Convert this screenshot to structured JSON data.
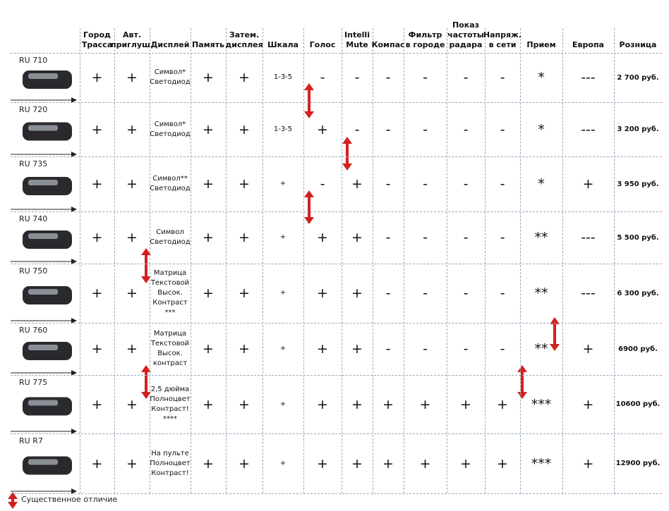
{
  "table": {
    "header": [
      [
        "Город",
        "Трасса"
      ],
      [
        "Авт.",
        "приглуш."
      ],
      [
        "Дисплей"
      ],
      [
        "Память"
      ],
      [
        "Затем.",
        "дисплея"
      ],
      [
        "Шкала"
      ],
      [
        "Голос"
      ],
      [
        "Intelli",
        "Mute"
      ],
      [
        "Компас"
      ],
      [
        "Фильтр",
        "в городе"
      ],
      [
        "Показ",
        "частоты",
        "радара"
      ],
      [
        "Напряж.",
        "в сети"
      ],
      [
        "Прием"
      ],
      [
        "Европа"
      ],
      [
        "Розница"
      ]
    ],
    "rows": [
      {
        "model": "RU 710",
        "cells": [
          "+",
          "+",
          [
            "Символ*",
            "Светодиод"
          ],
          "+",
          "+",
          "1-3-5",
          "-",
          "-",
          "-",
          "-",
          "-",
          "-",
          "*",
          "---",
          "2 700 руб."
        ]
      },
      {
        "model": "RU 720",
        "cells": [
          "+",
          "+",
          [
            "Символ*",
            "Светодиод"
          ],
          "+",
          "+",
          "1-3-5",
          "+",
          "-",
          "-",
          "-",
          "-",
          "-",
          "*",
          "---",
          "3 200 руб."
        ]
      },
      {
        "model": "RU 735",
        "cells": [
          "+",
          "+",
          [
            "Символ**",
            "Светодиод"
          ],
          "+",
          "+",
          "+",
          "-",
          "+",
          "-",
          "-",
          "-",
          "-",
          "*",
          "+",
          "3 950 руб."
        ]
      },
      {
        "model": "RU 740",
        "cells": [
          "+",
          "+",
          [
            "Символ",
            "Светодиод"
          ],
          "+",
          "+",
          "+",
          "+",
          "+",
          "-",
          "-",
          "-",
          "-",
          "**",
          "---",
          "5 500 руб."
        ]
      },
      {
        "model": "RU 750",
        "cells": [
          "+",
          "+",
          [
            "Матрица",
            "Текстовой",
            "Высок.",
            "Контраст",
            "***"
          ],
          "+",
          "+",
          "+",
          "+",
          "+",
          "-",
          "-",
          "-",
          "-",
          "**",
          "---",
          "6 300 руб."
        ]
      },
      {
        "model": "RU 760",
        "cells": [
          "+",
          "+",
          [
            "Матрица",
            "Текстовой",
            "Высок.",
            "контраст"
          ],
          "+",
          "+",
          "+",
          "+",
          "+",
          "-",
          "-",
          "-",
          "-",
          "**",
          "+",
          "6900 руб."
        ]
      },
      {
        "model": "RU 775",
        "cells": [
          "+",
          "+",
          [
            "2,5 дюйма",
            "Полноцвет",
            "Контраст!",
            "****"
          ],
          "+",
          "+",
          "+",
          "+",
          "+",
          "+",
          "+",
          "+",
          "+",
          "***",
          "+",
          "10600 руб."
        ]
      },
      {
        "model": "RU R7",
        "cells": [
          "+",
          "+",
          [
            "На пульте",
            "Полноцвет",
            "Контраст!"
          ],
          "+",
          "+",
          "+",
          "+",
          "+",
          "+",
          "+",
          "+",
          "+",
          "***",
          "+",
          "12900 руб."
        ]
      }
    ]
  },
  "legend": "Существенное отличие"
}
